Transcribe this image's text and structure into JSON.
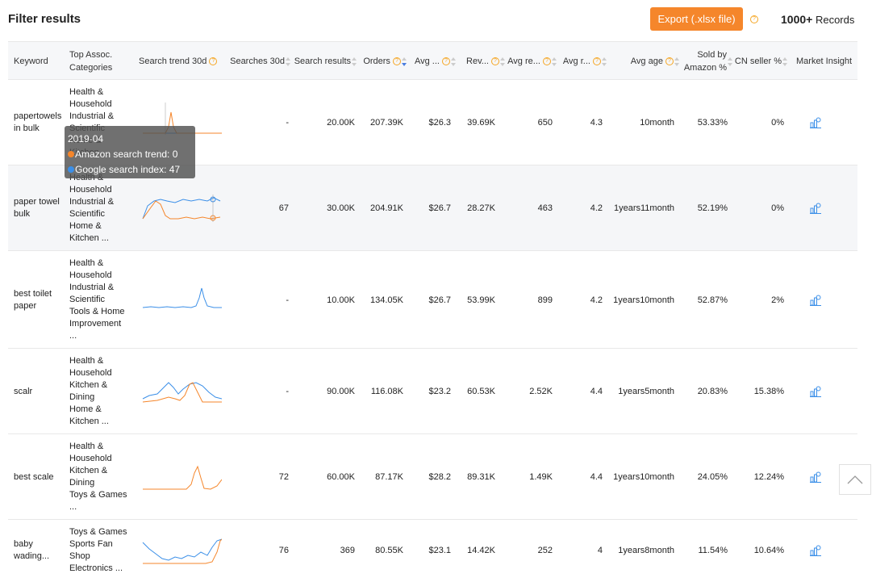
{
  "header": {
    "title": "Filter results",
    "export_label": "Export (.xlsx file)",
    "records_count": "1000+",
    "records_label": "Records"
  },
  "columns": {
    "keyword": "Keyword",
    "categories": "Top Assoc. Categories",
    "search_trend": "Search trend 30d",
    "searches": "Searches 30d",
    "search_results": "Search results",
    "orders": "Orders",
    "avg_price": "Avg ...",
    "revenue": "Rev...",
    "avg_reviews": "Avg re...",
    "avg_rating": "Avg r...",
    "avg_age": "Avg age",
    "sold_by_amazon": "Sold by Amazon %",
    "cn_seller": "CN seller %",
    "market_insight": "Market Insight"
  },
  "rows": [
    {
      "keyword": "papertowels in bulk",
      "categories": "Health &\nHousehold\nIndustrial &\nScientific\nHome &\nKitchen ...",
      "searches": "-",
      "search_results": "20.00K",
      "orders": "207.39K",
      "avg_price": "$26.3",
      "revenue": "39.69K",
      "avg_reviews": "650",
      "avg_rating": "4.3",
      "avg_age": "10month",
      "sold_by_amazon": "53.33%",
      "cn_seller": "0%"
    },
    {
      "keyword": "paper towel bulk",
      "categories": "Health &\nHousehold\nIndustrial &\nScientific\nHome &\nKitchen ...",
      "searches": "67",
      "search_results": "30.00K",
      "orders": "204.91K",
      "avg_price": "$26.7",
      "revenue": "28.27K",
      "avg_reviews": "463",
      "avg_rating": "4.2",
      "avg_age": "1years11month",
      "sold_by_amazon": "52.19%",
      "cn_seller": "0%"
    },
    {
      "keyword": "best toilet paper",
      "categories": "Health &\nHousehold\nIndustrial &\nScientific\nTools & Home\nImprovement\n...",
      "searches": "-",
      "search_results": "10.00K",
      "orders": "134.05K",
      "avg_price": "$26.7",
      "revenue": "53.99K",
      "avg_reviews": "899",
      "avg_rating": "4.2",
      "avg_age": "1years10month",
      "sold_by_amazon": "52.87%",
      "cn_seller": "2%"
    },
    {
      "keyword": "scalr",
      "categories": "Health &\nHousehold\nKitchen &\nDining\nHome &\nKitchen ...",
      "searches": "-",
      "search_results": "90.00K",
      "orders": "116.08K",
      "avg_price": "$23.2",
      "revenue": "60.53K",
      "avg_reviews": "2.52K",
      "avg_rating": "4.4",
      "avg_age": "1years5month",
      "sold_by_amazon": "20.83%",
      "cn_seller": "15.38%"
    },
    {
      "keyword": "best scale",
      "categories": "Health &\nHousehold\nKitchen &\nDining\nToys & Games\n...",
      "searches": "72",
      "search_results": "60.00K",
      "orders": "87.17K",
      "avg_price": "$28.2",
      "revenue": "89.31K",
      "avg_reviews": "1.49K",
      "avg_rating": "4.4",
      "avg_age": "1years10month",
      "sold_by_amazon": "24.05%",
      "cn_seller": "12.24%"
    },
    {
      "keyword": "baby wading...",
      "categories": "Toys & Games\nSports Fan\nShop\nElectronics ...",
      "searches": "76",
      "search_results": "369",
      "orders": "80.55K",
      "avg_price": "$23.1",
      "revenue": "14.42K",
      "avg_reviews": "252",
      "avg_rating": "4",
      "avg_age": "1years8month",
      "sold_by_amazon": "11.54%",
      "cn_seller": "10.64%"
    }
  ],
  "tooltip": {
    "date": "2019-04",
    "amazon_label": "Amazon search trend: 0",
    "google_label": "Google search index: 47"
  },
  "colors": {
    "accent": "#f5862b",
    "amazon_line": "#f5862b",
    "google_line": "#3b8fe8"
  }
}
